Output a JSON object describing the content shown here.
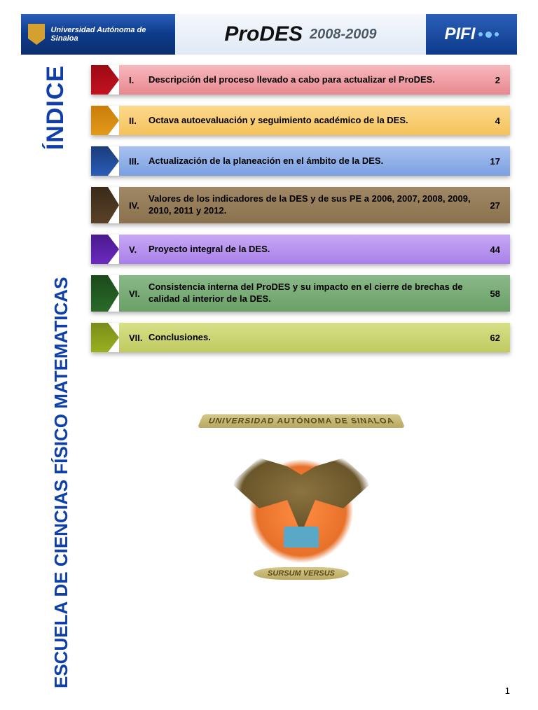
{
  "header": {
    "university": "Universidad Autónoma de Sinaloa",
    "prodes": "ProDES",
    "years": "2008-2009",
    "pifi": "PIFI"
  },
  "sidebar": {
    "indice": "ÍNDICE",
    "school": "ESCUELA DE CIENCIAS FÍSICO MATEMATICAS"
  },
  "toc": [
    {
      "num": "I.",
      "title": "Descripción del proceso llevado a cabo para actualizar el ProDES.",
      "page": "2",
      "arrow_gradient": [
        "#9c0a14",
        "#c41220"
      ],
      "bar_gradient": [
        "#f7b8be",
        "#e8888f"
      ],
      "tall": false
    },
    {
      "num": "II.",
      "title": "Octava autoevaluación y seguimiento académico de la DES.",
      "page": "4",
      "arrow_gradient": [
        "#c97e0a",
        "#e39a1a"
      ],
      "bar_gradient": [
        "#fcd98e",
        "#f5c25a"
      ],
      "tall": false
    },
    {
      "num": "III.",
      "title": "Actualización de la planeación en el ámbito de la DES.",
      "page": "17",
      "arrow_gradient": [
        "#1a3d7a",
        "#2a5cb8"
      ],
      "bar_gradient": [
        "#a8c2f0",
        "#7aa0e0"
      ],
      "tall": false
    },
    {
      "num": "IV.",
      "title": "Valores de los indicadores de la DES y de sus PE a 2006, 2007, 2008, 2009, 2010, 2011 y 2012.",
      "page": "27",
      "arrow_gradient": [
        "#3a2a1a",
        "#5a4228"
      ],
      "bar_gradient": [
        "#a08866",
        "#8a724e"
      ],
      "tall": true
    },
    {
      "num": "V.",
      "title": "Proyecto integral de la DES.",
      "page": "44",
      "arrow_gradient": [
        "#4a1a8c",
        "#6a2ac0"
      ],
      "bar_gradient": [
        "#c8a8f5",
        "#a880e8"
      ],
      "tall": false
    },
    {
      "num": "VI.",
      "title": "Consistencia interna del ProDES y su impacto en el cierre de brechas de calidad al interior de la DES.",
      "page": "58",
      "arrow_gradient": [
        "#1a4a1a",
        "#2a6a2a"
      ],
      "bar_gradient": [
        "#8ab888",
        "#6aa068"
      ],
      "tall": true
    },
    {
      "num": "VII.",
      "title": "Conclusiones.",
      "page": "62",
      "arrow_gradient": [
        "#7a8c1a",
        "#9ab020"
      ],
      "bar_gradient": [
        "#d8e088",
        "#c0ca60"
      ],
      "tall": false
    }
  ],
  "emblem": {
    "banner_top": "UNIVERSIDAD AUTÓNOMA DE SINALOA",
    "banner_bottom": "SURSUM VERSUS"
  },
  "page_number": "1"
}
